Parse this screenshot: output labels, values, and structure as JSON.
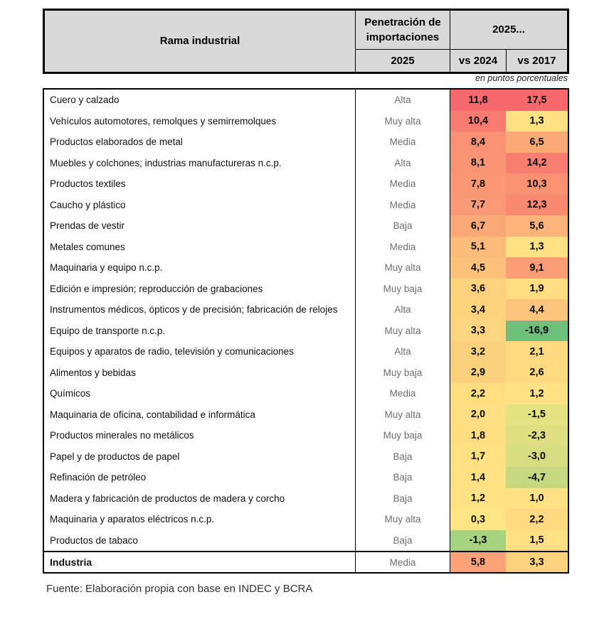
{
  "header": {
    "rama": "Rama industrial",
    "penetracion_line1": "Penetración de",
    "penetracion_line2": "importaciones",
    "penetracion_sub": "2025",
    "grupo_2025": "2025...",
    "vs_2024": "vs 2024",
    "vs_2017": "vs 2017"
  },
  "unit_note": "en puntos porcentuales",
  "footer": {
    "source": "Fuente: Elaboración propia con base en INDEC y BCRA"
  },
  "colors": {
    "header_bg": "#d9d9d9",
    "border": "#000000",
    "scale_red": "#f7696c",
    "scale_yellow": "#ffeb84",
    "scale_green": "#63be7b"
  },
  "chart_data": {
    "type": "table",
    "title": "",
    "columns": [
      "Rama industrial",
      "Penetración de importaciones 2025",
      "2025 vs 2024",
      "2025 vs 2017"
    ],
    "unit": "en puntos porcentuales",
    "rows": [
      {
        "rama": "Cuero y calzado",
        "penetracion": "Alta",
        "vs2024": 11.8,
        "vs2017": 17.5,
        "c24": "#f7696c",
        "c17": "#f7696c",
        "total": false
      },
      {
        "rama": "Vehículos automotores, remolques y semirremolques",
        "penetracion": "Muy alta",
        "vs2024": 10.4,
        "vs2017": 1.3,
        "c24": "#f87b72",
        "c17": "#ffe083",
        "total": false
      },
      {
        "rama": "Productos elaborados de metal",
        "penetracion": "Media",
        "vs2024": 8.4,
        "vs2017": 6.5,
        "c24": "#fa9174",
        "c17": "#fbaa76",
        "total": false
      },
      {
        "rama": "Muebles y colchones; industrias manufactureras n.c.p.",
        "penetracion": "Alta",
        "vs2024": 8.1,
        "vs2017": 14.2,
        "c24": "#fa9475",
        "c17": "#f87f70",
        "total": false
      },
      {
        "rama": "Productos textiles",
        "penetracion": "Media",
        "vs2024": 7.8,
        "vs2017": 10.3,
        "c24": "#fa9875",
        "c17": "#f99173",
        "total": false
      },
      {
        "rama": "Caucho y plástico",
        "penetracion": "Media",
        "vs2024": 7.7,
        "vs2017": 12.3,
        "c24": "#fa9976",
        "c17": "#f98971",
        "total": false
      },
      {
        "rama": "Prendas de vestir",
        "penetracion": "Baja",
        "vs2024": 6.7,
        "vs2017": 5.6,
        "c24": "#fba877",
        "c17": "#fcb479",
        "total": false
      },
      {
        "rama": "Metales comunes",
        "penetracion": "Media",
        "vs2024": 5.1,
        "vs2017": 1.3,
        "c24": "#fcbb7a",
        "c17": "#ffe083",
        "total": false
      },
      {
        "rama": "Maquinaria y equipo n.c.p.",
        "penetracion": "Muy alta",
        "vs2024": 4.5,
        "vs2017": 9.1,
        "c24": "#fcc17b",
        "c17": "#fa9c74",
        "total": false
      },
      {
        "rama": "Edición e impresión; reproducción de grabaciones",
        "penetracion": "Muy baja",
        "vs2024": 3.6,
        "vs2017": 1.9,
        "c24": "#fdd17e",
        "c17": "#fedd82",
        "total": false
      },
      {
        "rama": "Instrumentos médicos, ópticos y de precisión; fabricación de relojes",
        "penetracion": "Alta",
        "vs2024": 3.4,
        "vs2017": 4.4,
        "c24": "#fdd37e",
        "c17": "#fcc47c",
        "total": false
      },
      {
        "rama": "Equipo de transporte n.c.p.",
        "penetracion": "Muy alta",
        "vs2024": 3.3,
        "vs2017": -16.9,
        "c24": "#fdd47f",
        "c17": "#6cc07b",
        "total": false
      },
      {
        "rama": "Equipos y aparatos de radio, televisión y comunicaciones",
        "penetracion": "Alta",
        "vs2024": 3.2,
        "vs2017": 2.1,
        "c24": "#fcd07d",
        "c17": "#fed981",
        "total": false
      },
      {
        "rama": "Alimentos y bebidas",
        "penetracion": "Muy baja",
        "vs2024": 2.9,
        "vs2017": 2.6,
        "c24": "#fcd17d",
        "c17": "#fed981",
        "total": false
      },
      {
        "rama": "Químicos",
        "penetracion": "Media",
        "vs2024": 2.2,
        "vs2017": 1.2,
        "c24": "#fedd81",
        "c17": "#fee283",
        "total": false
      },
      {
        "rama": "Maquinaria de oficina, contabilidad e informática",
        "penetracion": "Muy alta",
        "vs2024": 2.0,
        "vs2017": -1.5,
        "c24": "#fede82",
        "c17": "#e4e282",
        "total": false
      },
      {
        "rama": "Productos minerales no metálicos",
        "penetracion": "Muy baja",
        "vs2024": 1.8,
        "vs2017": -2.3,
        "c24": "#fede81",
        "c17": "#dedf82",
        "total": false
      },
      {
        "rama": "Papel y de productos de papel",
        "penetracion": "Baja",
        "vs2024": 1.7,
        "vs2017": -3.0,
        "c24": "#fee082",
        "c17": "#d6dc80",
        "total": false
      },
      {
        "rama": "Refinación de petróleo",
        "penetracion": "Baja",
        "vs2024": 1.4,
        "vs2017": -4.7,
        "c24": "#fee183",
        "c17": "#c6d980",
        "total": false
      },
      {
        "rama": "Madera y fabricación de productos de madera y corcho",
        "penetracion": "Baja",
        "vs2024": 1.2,
        "vs2017": 1.0,
        "c24": "#ffe283",
        "c17": "#ffe383",
        "total": false
      },
      {
        "rama": "Maquinaria y aparatos eléctricos n.c.p.",
        "penetracion": "Muy alta",
        "vs2024": 0.3,
        "vs2017": 2.2,
        "c24": "#ffe583",
        "c17": "#fed981",
        "total": false
      },
      {
        "rama": "Productos de tabaco",
        "penetracion": "Baja",
        "vs2024": -1.3,
        "vs2017": 1.5,
        "c24": "#a6d37f",
        "c17": "#ffe183",
        "total": false
      },
      {
        "rama": "Industria",
        "penetracion": "Media",
        "vs2024": 5.8,
        "vs2017": 3.3,
        "c24": "#fba377",
        "c17": "#fdd27e",
        "total": true
      }
    ]
  }
}
